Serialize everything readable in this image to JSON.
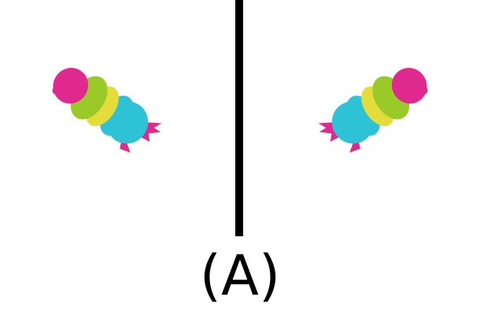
{
  "caption": "(A)",
  "colors": {
    "head": "#e0298f",
    "green": "#9ac92a",
    "yellow": "#e4dc3a",
    "cyan": "#2ec2d6",
    "divider": "#000000",
    "background": "#ffffff"
  },
  "icons": [
    "worm-figure-left",
    "worm-figure-right"
  ]
}
